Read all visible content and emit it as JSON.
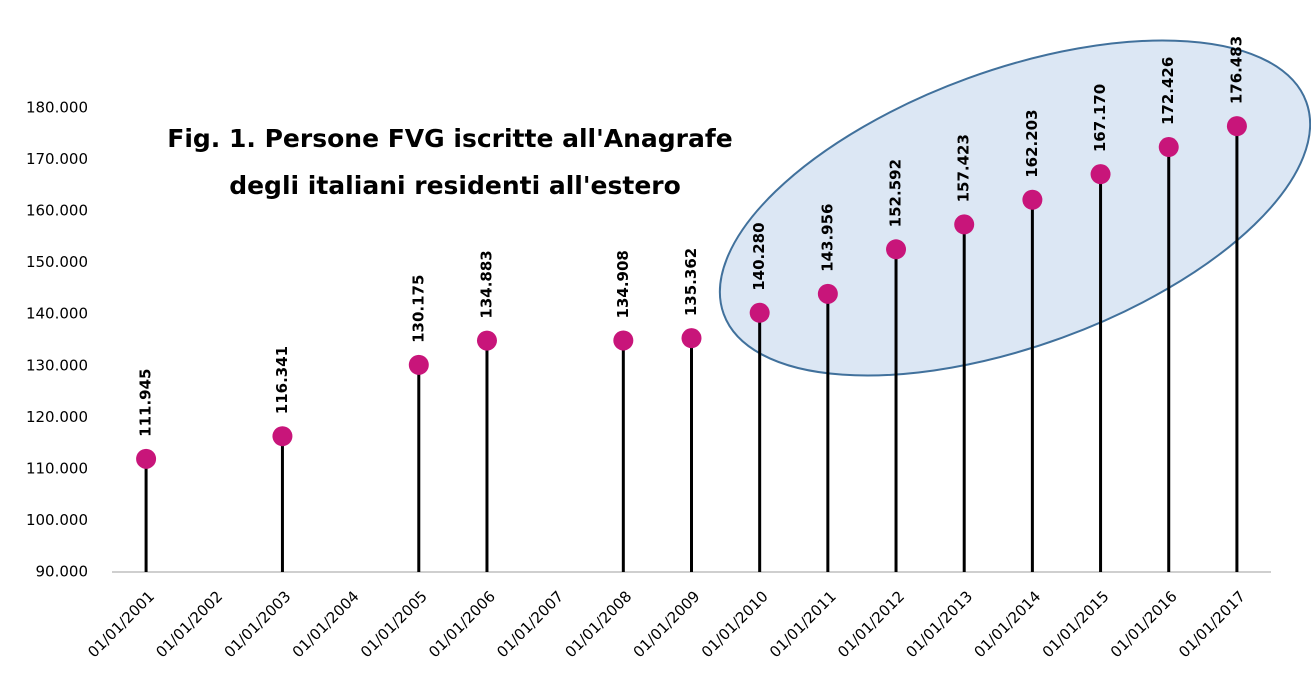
{
  "chart_data": {
    "type": "lollipop",
    "title": [
      "Fig. 1. Persone FVG iscritte all'Anagrafe",
      "degli italiani residenti all'estero"
    ],
    "categories": [
      "01/01/2001",
      "01/01/2002",
      "01/01/2003",
      "01/01/2004",
      "01/01/2005",
      "01/01/2006",
      "01/01/2007",
      "01/01/2008",
      "01/01/2009",
      "01/01/2010",
      "01/01/2011",
      "01/01/2012",
      "01/01/2013",
      "01/01/2014",
      "01/01/2015",
      "01/01/2016",
      "01/01/2017"
    ],
    "values": [
      111945,
      null,
      116341,
      null,
      130175,
      134883,
      null,
      134908,
      135362,
      140280,
      143956,
      152592,
      157423,
      162203,
      167170,
      172426,
      176483
    ],
    "value_labels": [
      "111.945",
      null,
      "116.341",
      null,
      "130.175",
      "134.883",
      null,
      "134.908",
      "135.362",
      "140.280",
      "143.956",
      "152.592",
      "157.423",
      "162.203",
      "167.170",
      "172.426",
      "176.483"
    ],
    "color": "#c8157a",
    "stem_color": "#000000",
    "ylim": [
      90000,
      180000
    ],
    "yticks": [
      {
        "value": 90000,
        "label": "90.000"
      },
      {
        "value": 100000,
        "label": "100.000"
      },
      {
        "value": 110000,
        "label": "110.000"
      },
      {
        "value": 120000,
        "label": "120.000"
      },
      {
        "value": 130000,
        "label": "130.000"
      },
      {
        "value": 140000,
        "label": "140.000"
      },
      {
        "value": 150000,
        "label": "150.000"
      },
      {
        "value": 160000,
        "label": "160.000"
      },
      {
        "value": 170000,
        "label": "170.000"
      },
      {
        "value": 180000,
        "label": "180.000"
      }
    ],
    "grid": false
  }
}
